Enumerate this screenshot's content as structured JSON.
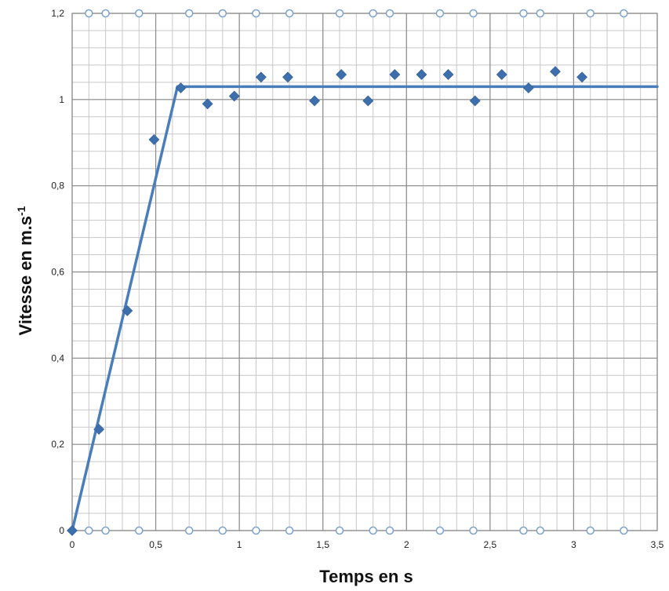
{
  "chart_data": {
    "type": "scatter",
    "title": "",
    "xlabel": "Temps en s",
    "ylabel": {
      "text": "Vitesse  en m.s",
      "superscript": "-1"
    },
    "xlim": [
      0,
      3.5
    ],
    "ylim": [
      0,
      1.2
    ],
    "x_major_ticks": [
      0,
      0.5,
      1,
      1.5,
      2,
      2.5,
      3,
      3.5
    ],
    "x_tick_labels": [
      "0",
      "0,5",
      "1",
      "1,5",
      "2",
      "2,5",
      "3",
      "3,5"
    ],
    "y_major_ticks": [
      0,
      0.2,
      0.4,
      0.6,
      0.8,
      1.0,
      1.2
    ],
    "y_tick_labels": [
      "0",
      "0,2",
      "0,4",
      "0,6",
      "0,8",
      "1",
      "1,2"
    ],
    "grid": true,
    "minor_grid_x_step": 0.1,
    "minor_grid_y_step": 0.04,
    "legend": "none",
    "series": [
      {
        "marker": "diamond",
        "color": "#3E6FAD",
        "points": [
          [
            0.0,
            0.0
          ],
          [
            0.16,
            0.235
          ],
          [
            0.33,
            0.51
          ],
          [
            0.49,
            0.907
          ],
          [
            0.65,
            1.027
          ],
          [
            0.81,
            0.99
          ],
          [
            0.97,
            1.008
          ],
          [
            1.13,
            1.052
          ],
          [
            1.29,
            1.052
          ],
          [
            1.45,
            0.997
          ],
          [
            1.61,
            1.058
          ],
          [
            1.77,
            0.997
          ],
          [
            1.93,
            1.058
          ],
          [
            2.09,
            1.058
          ],
          [
            2.25,
            1.058
          ],
          [
            2.41,
            0.997
          ],
          [
            2.57,
            1.058
          ],
          [
            2.73,
            1.027
          ],
          [
            2.89,
            1.065
          ],
          [
            3.05,
            1.052
          ]
        ]
      },
      {
        "marker": "open-circle",
        "color": "#7BA3CF",
        "points": [
          [
            0.1,
            1.2
          ],
          [
            0.2,
            1.2
          ],
          [
            0.4,
            1.2
          ],
          [
            0.7,
            1.2
          ],
          [
            0.9,
            1.2
          ],
          [
            1.1,
            1.2
          ],
          [
            1.3,
            1.2
          ],
          [
            1.6,
            1.2
          ],
          [
            1.8,
            1.2
          ],
          [
            1.9,
            1.2
          ],
          [
            2.2,
            1.2
          ],
          [
            2.4,
            1.2
          ],
          [
            2.7,
            1.2
          ],
          [
            2.8,
            1.2
          ],
          [
            3.1,
            1.2
          ],
          [
            3.3,
            1.2
          ],
          [
            0.1,
            0
          ],
          [
            0.2,
            0
          ],
          [
            0.4,
            0
          ],
          [
            0.7,
            0
          ],
          [
            0.9,
            0
          ],
          [
            1.1,
            0
          ],
          [
            1.3,
            0
          ],
          [
            1.6,
            0
          ],
          [
            1.8,
            0
          ],
          [
            1.9,
            0
          ],
          [
            2.2,
            0
          ],
          [
            2.4,
            0
          ],
          [
            2.7,
            0
          ],
          [
            2.8,
            0
          ],
          [
            3.1,
            0
          ],
          [
            3.3,
            0
          ]
        ]
      }
    ],
    "trend_lines": [
      {
        "color": "#4A7EBB",
        "points": [
          [
            0.0,
            0.0
          ],
          [
            0.63,
            1.03
          ],
          [
            3.5,
            1.03
          ]
        ]
      }
    ]
  }
}
